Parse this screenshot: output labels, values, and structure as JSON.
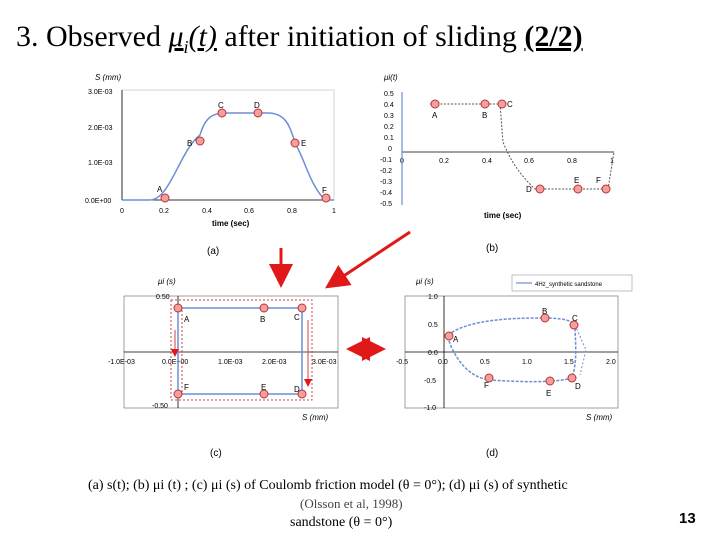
{
  "title": {
    "prefix": "3. Observed ",
    "symbol": "μ",
    "sub": "i",
    "arg": "(t)",
    "middle": " after initiation of sliding ",
    "part": "(2/2)"
  },
  "panels": {
    "a": {
      "label": "(a)",
      "ylabel": "S (mm)",
      "xlabel": "time (sec)",
      "yticks": [
        "3.0E-03",
        "2.0E-03",
        "1.0E-03",
        "0.0E+00"
      ],
      "xticks": [
        "0",
        "0.2",
        "0.4",
        "0.6",
        "0.8",
        "1"
      ],
      "points": [
        "A",
        "B",
        "C",
        "D",
        "E",
        "F"
      ]
    },
    "b": {
      "label": "(b)",
      "ylabel": "μi(t)",
      "xlabel": "time (sec)",
      "yticks": [
        "0.5",
        "0.4",
        "0.3",
        "0.2",
        "0.1",
        "0",
        "-0.1",
        "-0.2",
        "-0.3",
        "-0.4",
        "-0.5"
      ],
      "xticks": [
        "0",
        "0.2",
        "0.4",
        "0.6",
        "0.8",
        "1"
      ],
      "points": [
        "A",
        "B",
        "C",
        "D",
        "E",
        "F"
      ]
    },
    "c": {
      "label": "(c)",
      "ylabel": "μi (s)",
      "xlabel": "S (mm)",
      "yticks": [
        "0.50",
        "-0.50"
      ],
      "xticks": [
        "-1.0E-03",
        "0.0E+00",
        "1.0E-03",
        "2.0E-03",
        "3.0E-03"
      ],
      "points": [
        "A",
        "B",
        "C",
        "D",
        "E",
        "F"
      ]
    },
    "d": {
      "label": "(d)",
      "ylabel": "μi (s)",
      "xlabel": "S (mm)",
      "legend": "4Hz_synthetic sandstone",
      "yticks": [
        "1.0",
        "0.5",
        "0.0",
        "-0.5",
        "-1.0"
      ],
      "xticks": [
        "-0.5",
        "0.0",
        "0.5",
        "1.0",
        "1.5",
        "2.0"
      ],
      "points": [
        "A",
        "B",
        "C",
        "D",
        "E",
        "F"
      ]
    }
  },
  "caption": {
    "line1": "(a) s(t); (b) μi (t) ; (c)  μi (s)  of Coulomb friction model (θ = 0°); (d)  μi (s)  of synthetic",
    "line2": "sandstone (θ = 0°)",
    "citation": "(Olsson et al, 1998)"
  },
  "page_number": "13",
  "colors": {
    "curve": "#6b8fd6",
    "point_fill": "#f1a0a0",
    "point_stroke": "#c03030",
    "arrow": "#e01818",
    "dashed": "#d04040"
  }
}
